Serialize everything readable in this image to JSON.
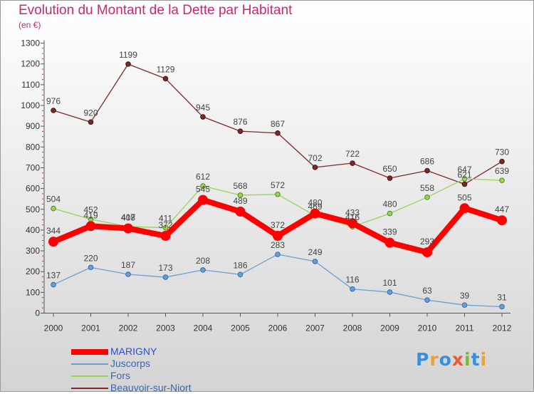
{
  "title": "Evolution du Montant de la Dette par Habitant",
  "unit": "(en €)",
  "logo": "Proxiti",
  "chart_data": {
    "type": "line",
    "title": "Evolution du Montant de la Dette par Habitant",
    "ylabel": "(en €)",
    "xlabel": "",
    "ylim": [
      0,
      1300
    ],
    "yticks": [
      "0",
      "100",
      "200",
      "300",
      "400",
      "500",
      "600",
      "700",
      "800",
      "900",
      "1000",
      "1100",
      "1200",
      "1300"
    ],
    "grid": "none",
    "legend": "bottom-left",
    "categories": [
      "2000",
      "2001",
      "2002",
      "2003",
      "2004",
      "2005",
      "2006",
      "2007",
      "2008",
      "2009",
      "2010",
      "2011",
      "2012"
    ],
    "series": [
      {
        "name": "MARIGNY",
        "color": "#ff0000",
        "values": [
          344,
          419,
          408,
          372,
          545,
          489,
          372,
          480,
          433,
          339,
          293,
          505,
          447
        ]
      },
      {
        "name": "Juscorps",
        "color": "#6a9fd4",
        "values": [
          137,
          220,
          187,
          173,
          208,
          186,
          283,
          249,
          116,
          101,
          63,
          39,
          31
        ]
      },
      {
        "name": "Fors",
        "color": "#9bd25a",
        "values": [
          504,
          452,
          417,
          411,
          612,
          568,
          572,
          469,
          416,
          480,
          558,
          647,
          639
        ]
      },
      {
        "name": "Beauvoir-sur-Niort",
        "color": "#7b2a2a",
        "values": [
          976,
          920,
          1199,
          1129,
          945,
          876,
          867,
          702,
          722,
          650,
          686,
          621,
          730
        ]
      }
    ]
  }
}
